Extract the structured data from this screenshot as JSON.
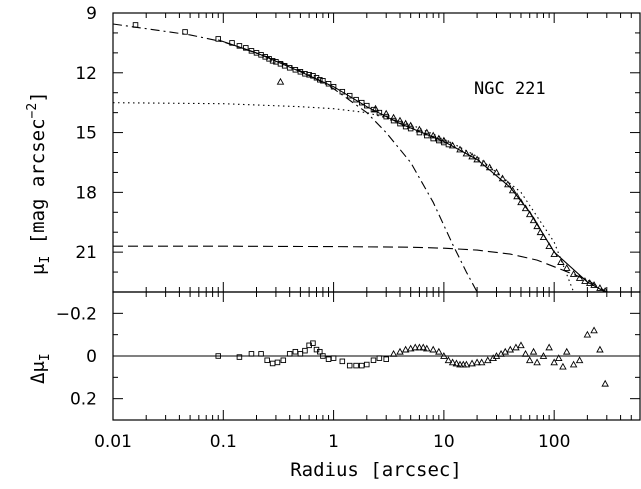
{
  "chart_data": [
    {
      "panel": "profile",
      "type": "scatter",
      "title": "",
      "annotation": "NGC 221",
      "xlabel": "Radius [arcsec]",
      "ylabel_main": "μ",
      "ylabel_sub": "I",
      "ylabel_rest": " [mag arcsec",
      "ylabel_sup": "−2",
      "ylabel_close": "]",
      "x_scale": "log",
      "xlim": [
        0.01,
        600
      ],
      "ylim": [
        23,
        9
      ],
      "y_inverted": true,
      "y_ticks": [
        "9",
        "12",
        "15",
        "18",
        "21"
      ],
      "y_tick_values": [
        9,
        12,
        15,
        18,
        21
      ],
      "series": [
        {
          "marker": "square",
          "points": [
            [
              0.016,
              9.6
            ],
            [
              0.045,
              9.95
            ],
            [
              0.09,
              10.3
            ],
            [
              0.12,
              10.5
            ],
            [
              0.14,
              10.65
            ],
            [
              0.16,
              10.75
            ],
            [
              0.18,
              10.9
            ],
            [
              0.2,
              11.0
            ],
            [
              0.22,
              11.1
            ],
            [
              0.24,
              11.2
            ],
            [
              0.26,
              11.3
            ],
            [
              0.28,
              11.4
            ],
            [
              0.3,
              11.45
            ],
            [
              0.33,
              11.55
            ],
            [
              0.36,
              11.65
            ],
            [
              0.4,
              11.75
            ],
            [
              0.45,
              11.85
            ],
            [
              0.5,
              11.95
            ],
            [
              0.55,
              12.05
            ],
            [
              0.6,
              12.1
            ],
            [
              0.65,
              12.15
            ],
            [
              0.7,
              12.25
            ],
            [
              0.75,
              12.35
            ],
            [
              0.8,
              12.4
            ],
            [
              0.9,
              12.55
            ],
            [
              1.0,
              12.7
            ],
            [
              1.2,
              12.95
            ],
            [
              1.4,
              13.15
            ],
            [
              1.6,
              13.35
            ],
            [
              1.8,
              13.5
            ],
            [
              2.0,
              13.65
            ],
            [
              2.3,
              13.85
            ],
            [
              2.6,
              14.0
            ],
            [
              3.0,
              14.2
            ],
            [
              3.5,
              14.4
            ],
            [
              4.0,
              14.55
            ],
            [
              4.5,
              14.7
            ],
            [
              5.0,
              14.8
            ],
            [
              6.0,
              15.0
            ],
            [
              7.0,
              15.15
            ],
            [
              8.0,
              15.3
            ],
            [
              9.0,
              15.4
            ],
            [
              10.0,
              15.5
            ],
            [
              11.0,
              15.6
            ]
          ]
        },
        {
          "marker": "triangle",
          "points": [
            [
              0.33,
              12.45
            ],
            [
              2.4,
              13.8
            ],
            [
              3.0,
              14.05
            ],
            [
              3.5,
              14.25
            ],
            [
              4.0,
              14.4
            ],
            [
              4.5,
              14.55
            ],
            [
              5.0,
              14.65
            ],
            [
              6.0,
              14.85
            ],
            [
              7.0,
              15.0
            ],
            [
              8.0,
              15.15
            ],
            [
              9.0,
              15.3
            ],
            [
              10.0,
              15.4
            ],
            [
              12.0,
              15.65
            ],
            [
              14.0,
              15.85
            ],
            [
              16.0,
              16.05
            ],
            [
              18.0,
              16.2
            ],
            [
              20.0,
              16.35
            ],
            [
              23.0,
              16.55
            ],
            [
              26.0,
              16.75
            ],
            [
              30.0,
              17.0
            ],
            [
              34.0,
              17.3
            ],
            [
              38.0,
              17.6
            ],
            [
              42.0,
              17.9
            ],
            [
              46.0,
              18.2
            ],
            [
              50.0,
              18.5
            ],
            [
              55.0,
              18.8
            ],
            [
              60.0,
              19.1
            ],
            [
              65.0,
              19.4
            ],
            [
              70.0,
              19.7
            ],
            [
              75.0,
              20.0
            ],
            [
              80.0,
              20.25
            ],
            [
              90.0,
              20.7
            ],
            [
              100.0,
              21.1
            ],
            [
              115.0,
              21.5
            ],
            [
              130.0,
              21.8
            ],
            [
              150.0,
              22.1
            ],
            [
              170.0,
              22.3
            ],
            [
              190.0,
              22.45
            ],
            [
              210.0,
              22.55
            ],
            [
              230.0,
              22.65
            ],
            [
              260.0,
              22.8
            ],
            [
              290.0,
              22.95
            ]
          ]
        }
      ],
      "lines": [
        {
          "style": "solid",
          "points": [
            [
              0.09,
              10.35
            ],
            [
              0.2,
              11.0
            ],
            [
              0.5,
              11.95
            ],
            [
              1.0,
              12.7
            ],
            [
              2.0,
              13.7
            ],
            [
              4.0,
              14.55
            ],
            [
              10.0,
              15.45
            ],
            [
              20.0,
              16.35
            ],
            [
              40.0,
              17.75
            ],
            [
              60.0,
              19.0
            ],
            [
              100.0,
              21.0
            ],
            [
              200.0,
              22.5
            ],
            [
              290.0,
              23.0
            ]
          ]
        },
        {
          "style": "dash-dot",
          "points": [
            [
              0.01,
              9.55
            ],
            [
              0.05,
              10.1
            ],
            [
              0.1,
              10.45
            ],
            [
              0.3,
              11.35
            ],
            [
              0.6,
              12.1
            ],
            [
              1.0,
              12.8
            ],
            [
              2.0,
              14.0
            ],
            [
              3.0,
              15.0
            ],
            [
              5.0,
              16.5
            ],
            [
              8.0,
              18.5
            ],
            [
              12.0,
              20.6
            ],
            [
              16.0,
              22.0
            ],
            [
              20.0,
              23.0
            ]
          ]
        },
        {
          "style": "dotted",
          "points": [
            [
              0.01,
              13.5
            ],
            [
              0.1,
              13.55
            ],
            [
              0.5,
              13.7
            ],
            [
              1.0,
              13.8
            ],
            [
              2.0,
              14.0
            ],
            [
              5.0,
              14.6
            ],
            [
              10.0,
              15.3
            ],
            [
              20.0,
              16.2
            ],
            [
              50.0,
              18.0
            ],
            [
              100.0,
              20.5
            ],
            [
              150.0,
              23.0
            ]
          ]
        },
        {
          "style": "dashed",
          "points": [
            [
              0.01,
              20.7
            ],
            [
              0.1,
              20.7
            ],
            [
              1.0,
              20.72
            ],
            [
              5.0,
              20.75
            ],
            [
              10.0,
              20.8
            ],
            [
              20.0,
              20.9
            ],
            [
              40.0,
              21.1
            ],
            [
              70.0,
              21.4
            ],
            [
              120.0,
              21.9
            ],
            [
              200.0,
              22.4
            ],
            [
              300.0,
              23.0
            ]
          ]
        }
      ]
    },
    {
      "panel": "residuals",
      "type": "scatter",
      "xlabel": "Radius [arcsec]",
      "x_scale": "log",
      "xlim": [
        0.01,
        600
      ],
      "x_ticks": [
        "0.01",
        "0.1",
        "1",
        "10",
        "100"
      ],
      "x_tick_values": [
        0.01,
        0.1,
        1,
        10,
        100
      ],
      "ylabel_main": "Δμ",
      "ylabel_sub": "I",
      "ylim": [
        -0.3,
        0.3
      ],
      "y_inverted": true,
      "y_ticks": [
        "−0.2",
        "0",
        "0.2"
      ],
      "y_tick_values": [
        -0.2,
        0,
        0.2
      ],
      "reference_line": 0,
      "series": [
        {
          "marker": "square",
          "points": [
            [
              0.09,
              0.0
            ],
            [
              0.14,
              0.005
            ],
            [
              0.18,
              -0.01
            ],
            [
              0.22,
              -0.01
            ],
            [
              0.25,
              0.02
            ],
            [
              0.28,
              0.035
            ],
            [
              0.31,
              0.03
            ],
            [
              0.35,
              0.02
            ],
            [
              0.4,
              -0.01
            ],
            [
              0.45,
              -0.02
            ],
            [
              0.5,
              -0.01
            ],
            [
              0.55,
              -0.025
            ],
            [
              0.6,
              -0.05
            ],
            [
              0.65,
              -0.06
            ],
            [
              0.7,
              -0.03
            ],
            [
              0.75,
              -0.02
            ],
            [
              0.8,
              0.0
            ],
            [
              0.9,
              0.015
            ],
            [
              1.0,
              0.01
            ],
            [
              1.2,
              0.025
            ],
            [
              1.4,
              0.045
            ],
            [
              1.6,
              0.045
            ],
            [
              1.8,
              0.045
            ],
            [
              2.0,
              0.04
            ],
            [
              2.3,
              0.02
            ],
            [
              2.6,
              0.01
            ],
            [
              3.0,
              0.015
            ]
          ]
        },
        {
          "marker": "triangle",
          "points": [
            [
              3.5,
              -0.01
            ],
            [
              4.0,
              -0.02
            ],
            [
              4.5,
              -0.03
            ],
            [
              5.0,
              -0.035
            ],
            [
              5.5,
              -0.04
            ],
            [
              6.0,
              -0.04
            ],
            [
              6.5,
              -0.04
            ],
            [
              7.0,
              -0.035
            ],
            [
              8.0,
              -0.03
            ],
            [
              9.0,
              -0.02
            ],
            [
              10.0,
              0.0
            ],
            [
              11.0,
              0.02
            ],
            [
              12.0,
              0.03
            ],
            [
              13.0,
              0.035
            ],
            [
              14.0,
              0.04
            ],
            [
              15.0,
              0.04
            ],
            [
              16.0,
              0.04
            ],
            [
              18.0,
              0.035
            ],
            [
              20.0,
              0.03
            ],
            [
              22.0,
              0.03
            ],
            [
              25.0,
              0.02
            ],
            [
              28.0,
              0.01
            ],
            [
              30.0,
              0.0
            ],
            [
              33.0,
              -0.01
            ],
            [
              36.0,
              -0.02
            ],
            [
              40.0,
              -0.03
            ],
            [
              45.0,
              -0.04
            ],
            [
              50.0,
              -0.05
            ],
            [
              55.0,
              -0.01
            ],
            [
              60.0,
              0.02
            ],
            [
              65.0,
              -0.02
            ],
            [
              70.0,
              0.03
            ],
            [
              80.0,
              0.0
            ],
            [
              90.0,
              -0.04
            ],
            [
              100.0,
              0.03
            ],
            [
              110.0,
              0.01
            ],
            [
              120.0,
              0.05
            ],
            [
              130.0,
              -0.02
            ],
            [
              150.0,
              0.04
            ],
            [
              170.0,
              0.02
            ],
            [
              200.0,
              -0.1
            ],
            [
              230.0,
              -0.12
            ],
            [
              260.0,
              -0.03
            ],
            [
              290.0,
              0.13
            ]
          ]
        }
      ]
    }
  ]
}
